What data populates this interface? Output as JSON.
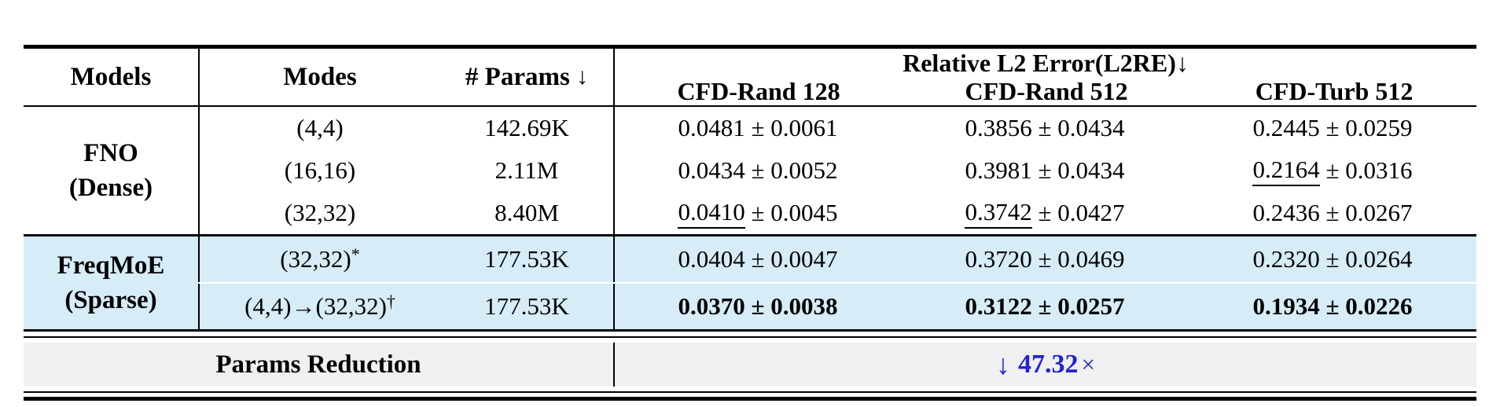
{
  "colors": {
    "highlight_row": "#d6ecf7",
    "footer_row_bg": "#f0f0f0",
    "accent_blue": "#2222d6",
    "rule_black": "#000000"
  },
  "table": {
    "headers": {
      "models": "Models",
      "modes": "Modes",
      "params": "# Params",
      "params_arrow": "↓",
      "l2re": "Relative L2 Error(L2RE)↓",
      "datasets": [
        "CFD-Rand 128",
        "CFD-Rand 512",
        "CFD-Turb 512"
      ]
    },
    "sections": [
      {
        "model": "FNO",
        "model_sub": "(Dense)",
        "highlight": false,
        "rows": [
          {
            "modes": "(4,4)",
            "sup": "",
            "params": "142.69K",
            "cells": [
              {
                "v": "0.0481",
                "e": "0.0061",
                "u": false,
                "b": false
              },
              {
                "v": "0.3856",
                "e": "0.0434",
                "u": false,
                "b": false
              },
              {
                "v": "0.2445",
                "e": "0.0259",
                "u": false,
                "b": false
              }
            ]
          },
          {
            "modes": "(16,16)",
            "sup": "",
            "params": "2.11M",
            "cells": [
              {
                "v": "0.0434",
                "e": "0.0052",
                "u": false,
                "b": false
              },
              {
                "v": "0.3981",
                "e": "0.0434",
                "u": false,
                "b": false
              },
              {
                "v": "0.2164",
                "e": "0.0316",
                "u": true,
                "b": false
              }
            ]
          },
          {
            "modes": "(32,32)",
            "sup": "",
            "params": "8.40M",
            "cells": [
              {
                "v": "0.0410",
                "e": "0.0045",
                "u": true,
                "b": false
              },
              {
                "v": "0.3742",
                "e": "0.0427",
                "u": true,
                "b": false
              },
              {
                "v": "0.2436",
                "e": "0.0267",
                "u": false,
                "b": false
              }
            ]
          }
        ]
      },
      {
        "model": "FreqMoE",
        "model_sub": "(Sparse)",
        "highlight": true,
        "rows": [
          {
            "modes": "(32,32)",
            "sup": "*",
            "params": "177.53K",
            "cells": [
              {
                "v": "0.0404",
                "e": "0.0047",
                "u": false,
                "b": false
              },
              {
                "v": "0.3720",
                "e": "0.0469",
                "u": false,
                "b": false
              },
              {
                "v": "0.2320",
                "e": "0.0264",
                "u": false,
                "b": false
              }
            ]
          },
          {
            "modes": "(4,4)→(32,32)",
            "sup": "†",
            "params": "177.53K",
            "cells": [
              {
                "v": "0.0370",
                "e": "0.0038",
                "u": false,
                "b": true
              },
              {
                "v": "0.3122",
                "e": "0.0257",
                "u": false,
                "b": true
              },
              {
                "v": "0.1934",
                "e": "0.0226",
                "u": false,
                "b": true
              }
            ]
          }
        ]
      }
    ],
    "pm_sign": "±",
    "footer": {
      "label": "Params Reduction",
      "arrow": "↓",
      "value": "47.32",
      "times": "×"
    }
  }
}
